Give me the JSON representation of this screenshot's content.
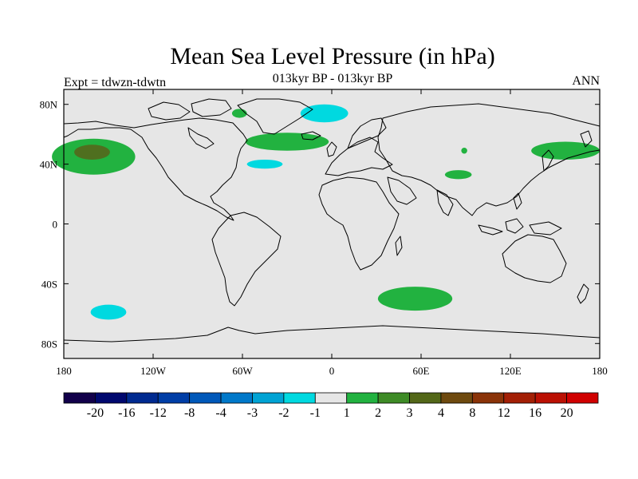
{
  "title": "Mean Sea Level Pressure (in hPa)",
  "subtitle": "013kyr BP - 013kyr BP",
  "left_label": "Expt = tdwzn-tdwtn",
  "right_label": "ANN",
  "colors": {
    "land_ocean_bg": "#e6e6e6",
    "coast": "#000000"
  },
  "map": {
    "lon_range": [
      -180,
      180
    ],
    "lat_range": [
      -90,
      90
    ],
    "x_ticks": [
      {
        "lon": -180,
        "label": "180"
      },
      {
        "lon": -120,
        "label": "120W"
      },
      {
        "lon": -60,
        "label": "60W"
      },
      {
        "lon": 0,
        "label": "0"
      },
      {
        "lon": 60,
        "label": "60E"
      },
      {
        "lon": 120,
        "label": "120E"
      },
      {
        "lon": 180,
        "label": "180"
      }
    ],
    "y_ticks": [
      {
        "lat": 80,
        "label": "80N"
      },
      {
        "lat": 40,
        "label": "40N"
      },
      {
        "lat": 0,
        "label": "0"
      },
      {
        "lat": -40,
        "label": "40S"
      },
      {
        "lat": -80,
        "label": "80S"
      }
    ],
    "anomalies": [
      {
        "name": "north-pacific-high",
        "level": "1 to 2",
        "color": "#22b240",
        "lon": -160,
        "lat": 45,
        "rlon": 28,
        "rlat": 12
      },
      {
        "name": "north-pacific-core",
        "level": "3 to 4",
        "color": "#4f6f1f",
        "lon": -161,
        "lat": 48,
        "rlon": 12,
        "rlat": 5
      },
      {
        "name": "north-atlantic-high",
        "level": "1 to 2",
        "color": "#22b240",
        "lon": -30,
        "lat": 55,
        "rlon": 28,
        "rlat": 6
      },
      {
        "name": "greenland-sea-high",
        "level": "1 to 2",
        "color": "#22b240",
        "lon": -62,
        "lat": 74,
        "rlon": 5,
        "rlat": 3
      },
      {
        "name": "arctic-low",
        "level": "-2 to -1",
        "color": "#00d9e0",
        "lon": -5,
        "lat": 74,
        "rlon": 16,
        "rlat": 6
      },
      {
        "name": "atlantic-low",
        "level": "-2 to -1",
        "color": "#00d9e0",
        "lon": -45,
        "lat": 40,
        "rlon": 12,
        "rlat": 3
      },
      {
        "name": "central-asia-high",
        "level": "1 to 2",
        "color": "#22b240",
        "lon": 85,
        "lat": 33,
        "rlon": 9,
        "rlat": 3
      },
      {
        "name": "siberia-high",
        "level": "1 to 2",
        "color": "#22b240",
        "lon": 89,
        "lat": 49,
        "rlon": 2,
        "rlat": 2
      },
      {
        "name": "west-pacific-high",
        "level": "1 to 2",
        "color": "#22b240",
        "lon": 157,
        "lat": 49,
        "rlon": 23,
        "rlat": 6
      },
      {
        "name": "south-indian-high",
        "level": "1 to 2",
        "color": "#22b240",
        "lon": 56,
        "lat": -50,
        "rlon": 25,
        "rlat": 8
      },
      {
        "name": "south-pacific-low",
        "level": "-2 to -1",
        "color": "#00d9e0",
        "lon": -150,
        "lat": -59,
        "rlon": 12,
        "rlat": 5
      }
    ]
  },
  "colorbar": {
    "boxes": [
      "#12004a",
      "#00086e",
      "#002a90",
      "#003ea6",
      "#0058b9",
      "#0078c9",
      "#00a3d4",
      "#00d9e0",
      "#e6e6e6",
      "#22b240",
      "#3e8b26",
      "#536718",
      "#6e4a0f",
      "#8a3308",
      "#a31f05",
      "#bb1003",
      "#d00000"
    ],
    "labels": [
      "-20",
      "-16",
      "-12",
      "-8",
      "-4",
      "-3",
      "-2",
      "-1",
      "1",
      "2",
      "3",
      "4",
      "8",
      "12",
      "16",
      "20"
    ]
  }
}
